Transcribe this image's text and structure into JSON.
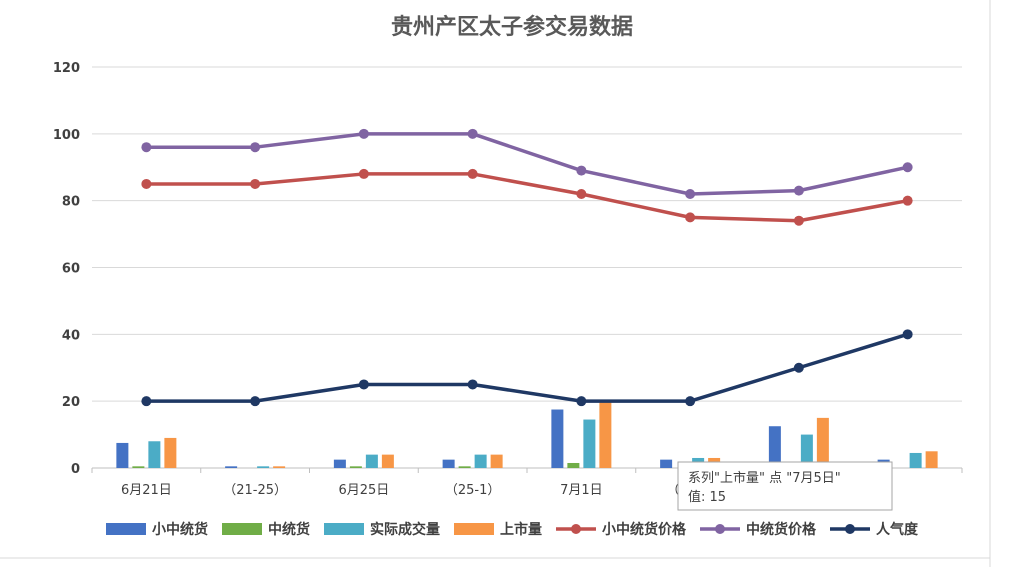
{
  "chart_data": {
    "type": "bar+line",
    "title": "贵州产区太子参交易数据",
    "categories": [
      "6月21日",
      "（21-25）",
      "6月25日",
      "（25-1）",
      "7月1日",
      "（1-5）",
      "7月5日",
      ""
    ],
    "ylim": [
      0,
      120
    ],
    "yticks": [
      0,
      20,
      40,
      60,
      80,
      100,
      120
    ],
    "grid": true,
    "legend_position": "bottom",
    "bar_series": [
      {
        "name": "小中统货",
        "color": "#4472C4",
        "values": [
          7.5,
          0.5,
          2.5,
          2.5,
          17.5,
          2.5,
          12.5,
          2.5
        ]
      },
      {
        "name": "中统货",
        "color": "#70AD47",
        "values": [
          0.5,
          0,
          0.5,
          0.5,
          1.5,
          0,
          1.5,
          0
        ]
      },
      {
        "name": "实际成交量",
        "color": "#4BACC6",
        "values": [
          8,
          0.5,
          4,
          4,
          14.5,
          3,
          10,
          4.5
        ]
      },
      {
        "name": "上市量",
        "color": "#F79646",
        "values": [
          9,
          0.5,
          4,
          4,
          20,
          3,
          15,
          5
        ]
      }
    ],
    "line_series": [
      {
        "name": "小中统货价格",
        "color": "#C0504D",
        "values": [
          85,
          85,
          88,
          88,
          82,
          75,
          74,
          80
        ]
      },
      {
        "name": "中统货价格",
        "color": "#8064A2",
        "values": [
          96,
          96,
          100,
          100,
          89,
          82,
          83,
          90
        ]
      },
      {
        "name": "人气度",
        "color": "#1F3864",
        "values": [
          20,
          20,
          25,
          25,
          20,
          20,
          30,
          40
        ]
      }
    ],
    "tooltip": {
      "line1": "系列\"上市量\" 点 \"7月5日\"",
      "line2": "值: 15"
    }
  }
}
